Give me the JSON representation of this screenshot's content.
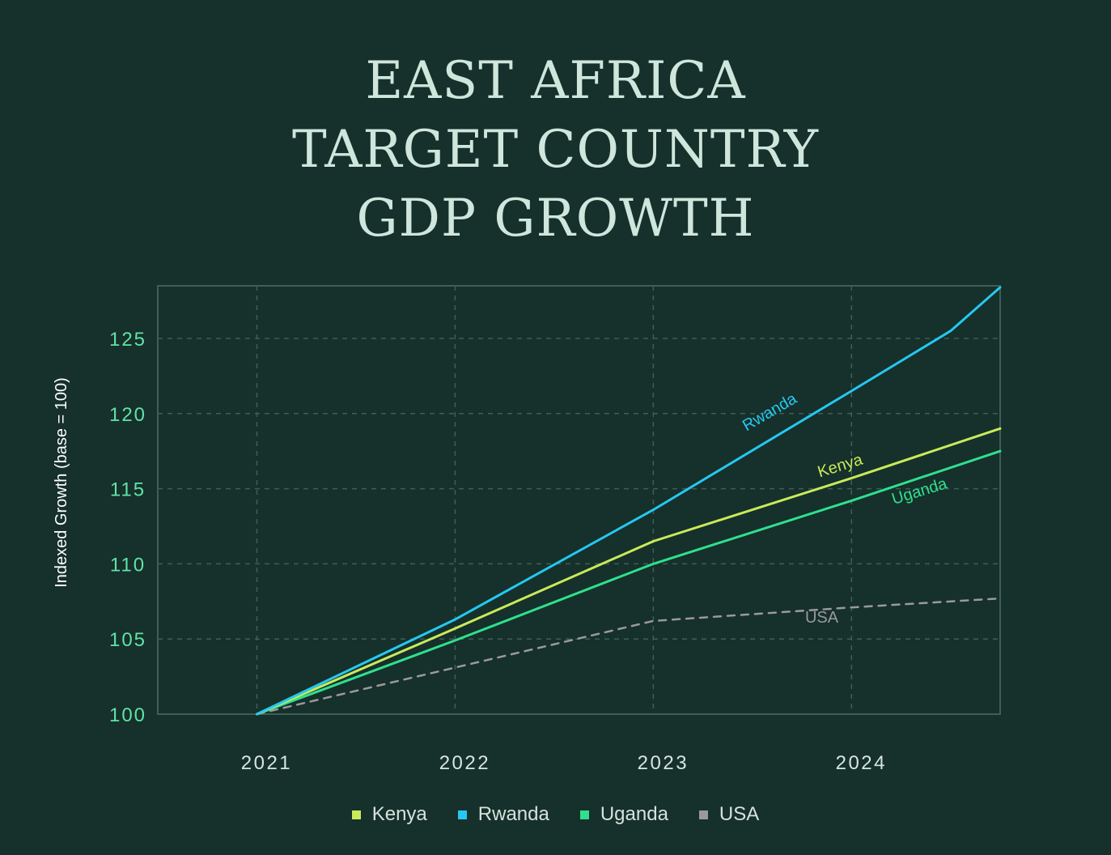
{
  "title_lines": [
    "EAST AFRICA",
    "TARGET COUNTRY",
    "GDP GROWTH"
  ],
  "colors": {
    "background": "#16302b",
    "grid": "#3f5e55",
    "tick_y": "#5fe3a7",
    "tick_x": "#d6e6df",
    "axis_label": "#ffffff"
  },
  "chart_data": {
    "type": "line",
    "title": "EAST AFRICA TARGET COUNTRY GDP GROWTH",
    "xlabel": "",
    "ylabel": "Indexed Growth (base = 100)",
    "x_ticks": [
      2021,
      2022,
      2023,
      2024
    ],
    "x_tick_labels": [
      "2021",
      "2022",
      "2023",
      "2024"
    ],
    "xlim": [
      2020.5,
      2024.75
    ],
    "y_ticks": [
      100,
      105,
      110,
      115,
      120,
      125
    ],
    "y_tick_labels": [
      "100",
      "105",
      "110",
      "115",
      "120",
      "125"
    ],
    "ylim": [
      100,
      128.5
    ],
    "grid": true,
    "legend_position": "bottom-center",
    "series": [
      {
        "name": "Kenya",
        "color": "#c9ea5a",
        "dashed": false,
        "label": "Kenya",
        "label_x": 2023.95,
        "label_y": 116.2,
        "label_angle": -17,
        "points": [
          [
            2021,
            100
          ],
          [
            2022,
            105.7
          ],
          [
            2023,
            111.5
          ],
          [
            2024,
            115.7
          ],
          [
            2024.75,
            119
          ]
        ]
      },
      {
        "name": "Rwanda",
        "color": "#25c8f0",
        "dashed": false,
        "label": "Rwanda",
        "label_x": 2023.6,
        "label_y": 119.8,
        "label_angle": -30,
        "points": [
          [
            2021,
            100
          ],
          [
            2022,
            106.3
          ],
          [
            2023,
            113.6
          ],
          [
            2024,
            121.5
          ],
          [
            2024.5,
            125.5
          ],
          [
            2024.75,
            128.4
          ]
        ]
      },
      {
        "name": "Uganda",
        "color": "#2fe08e",
        "dashed": false,
        "label": "Uganda",
        "label_x": 2024.35,
        "label_y": 114.5,
        "label_angle": -17,
        "points": [
          [
            2021,
            100
          ],
          [
            2022,
            104.9
          ],
          [
            2023,
            110
          ],
          [
            2024,
            114.2
          ],
          [
            2024.75,
            117.5
          ]
        ]
      },
      {
        "name": "USA",
        "color": "#9a9a9a",
        "dashed": true,
        "label": "USA",
        "label_x": 2023.85,
        "label_y": 106.1,
        "label_angle": 0,
        "points": [
          [
            2021,
            100
          ],
          [
            2022,
            103.1
          ],
          [
            2023,
            106.2
          ],
          [
            2024,
            107.1
          ],
          [
            2024.75,
            107.7
          ]
        ]
      }
    ]
  },
  "legend": [
    {
      "label": "Kenya",
      "color": "#c9ea5a"
    },
    {
      "label": "Rwanda",
      "color": "#25c8f0"
    },
    {
      "label": "Uganda",
      "color": "#2fe08e"
    },
    {
      "label": "USA",
      "color": "#9a9a9a"
    }
  ]
}
